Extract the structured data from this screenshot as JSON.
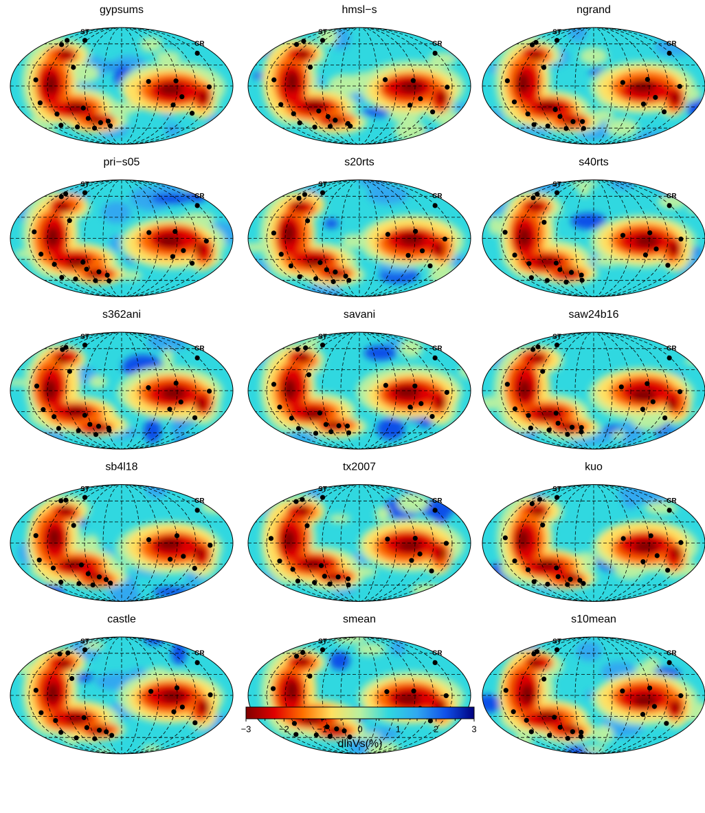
{
  "panels": [
    {
      "title": "gypsums"
    },
    {
      "title": "hmsl−s"
    },
    {
      "title": "ngrand"
    },
    {
      "title": "pri−s05"
    },
    {
      "title": "s20rts"
    },
    {
      "title": "s40rts"
    },
    {
      "title": "s362ani"
    },
    {
      "title": "savani"
    },
    {
      "title": "saw24b16"
    },
    {
      "title": "sb4l18"
    },
    {
      "title": "tx2007"
    },
    {
      "title": "kuo"
    },
    {
      "title": "castle"
    },
    {
      "title": "smean"
    },
    {
      "title": "s10mean"
    }
  ],
  "site_labels": {
    "st": "ST",
    "cr": "CR"
  },
  "colorbar": {
    "label": "dlnVs(%)",
    "lim": [
      -3,
      3
    ],
    "ticks": [
      {
        "value": -3,
        "label": "−3"
      },
      {
        "value": -2,
        "label": "−2"
      },
      {
        "value": -1,
        "label": "−1"
      },
      0,
      1,
      2,
      3
    ],
    "colors": [
      "#7f0000",
      "#e00000",
      "#ff7000",
      "#ffe060",
      "#b8f0a0",
      "#30d8e0",
      "#30a8f0",
      "#1050e8",
      "#00007f"
    ]
  }
}
